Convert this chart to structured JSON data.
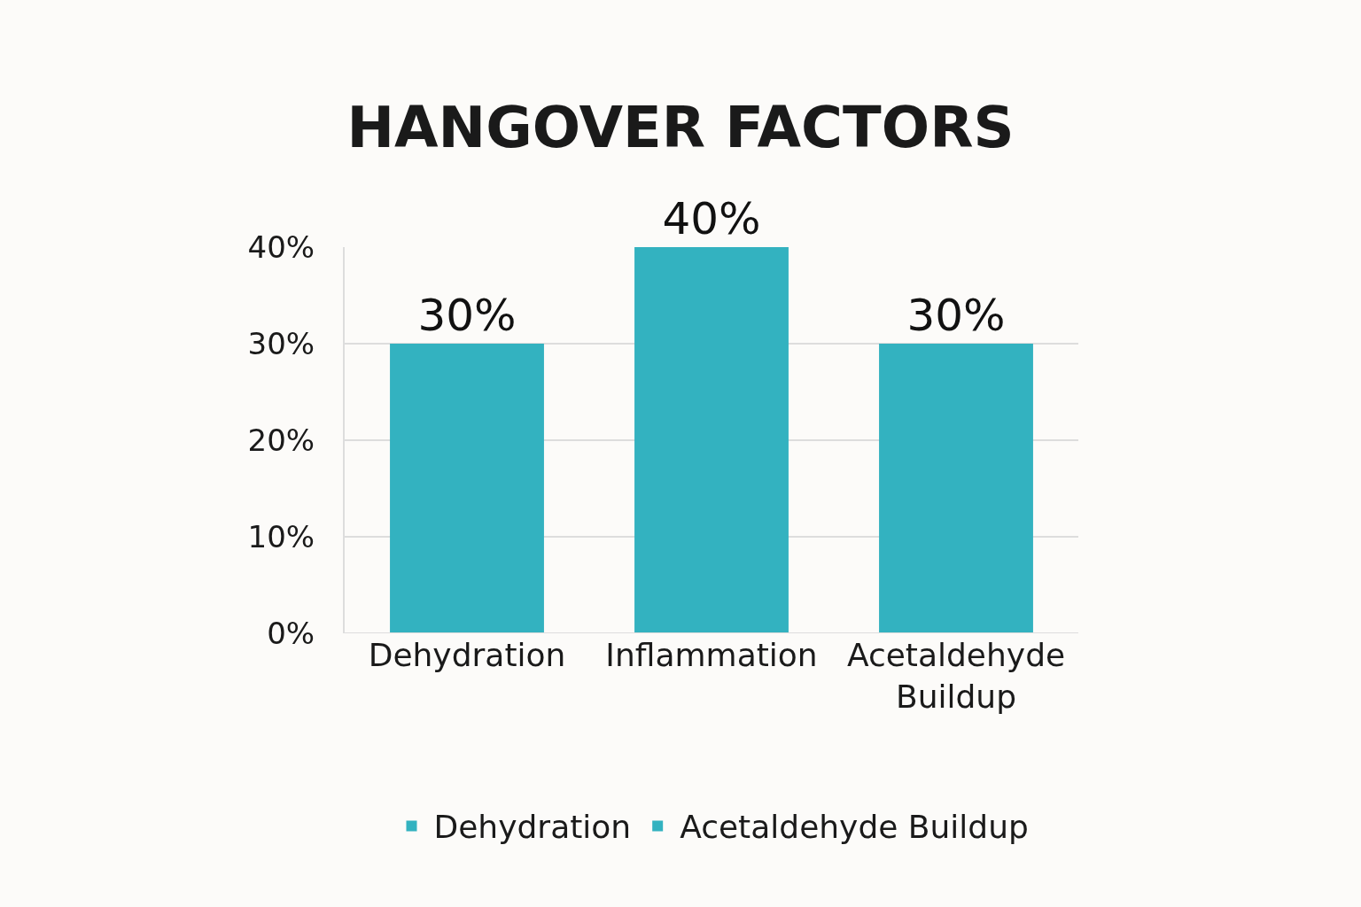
{
  "chart_data": {
    "type": "bar",
    "title": "HANGOVER FACTORS",
    "categories": [
      "Dehydration",
      "Inflammation",
      "Acetaldehyde Buildup"
    ],
    "series": [
      {
        "name": "Dehydration",
        "color": "#33b2c0",
        "values": [
          30,
          null,
          null
        ],
        "value_labels": [
          "30%",
          null,
          null
        ]
      },
      {
        "color": "#33b2c0",
        "values": [
          null,
          40,
          null
        ],
        "value_labels": [
          null,
          "40%",
          null
        ]
      },
      {
        "name": "Acetaldehyde Buildup",
        "color": "#33b2c0",
        "values": [
          null,
          null,
          30
        ],
        "value_labels": [
          null,
          null,
          "30%"
        ]
      }
    ],
    "ylim": [
      0,
      40
    ],
    "yticks": [
      {
        "value": 0,
        "label": "0%"
      },
      {
        "value": 10,
        "label": "10%"
      },
      {
        "value": 20,
        "label": "20%"
      },
      {
        "value": 30,
        "label": "30%"
      },
      {
        "value": 40,
        "label": "40%"
      }
    ],
    "grid": "y",
    "legend": "bottom"
  }
}
